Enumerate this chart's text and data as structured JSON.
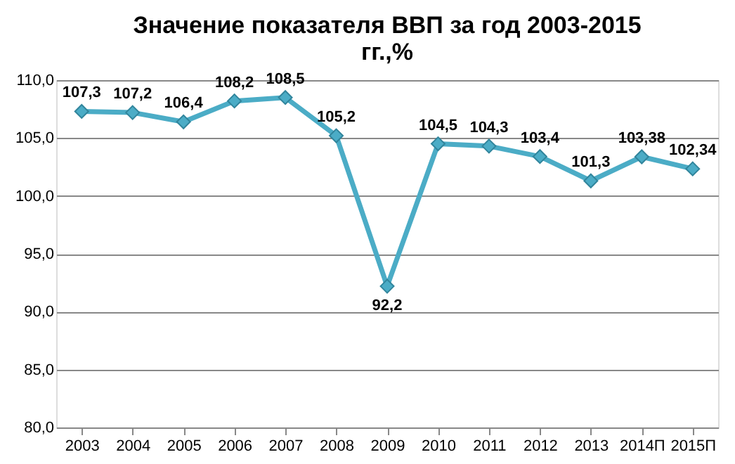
{
  "chart_data": {
    "type": "line",
    "title": "Значение показателя ВВП за год 2003-2015\nгг.,%",
    "categories": [
      "2003",
      "2004",
      "2005",
      "2006",
      "2007",
      "2008",
      "2009",
      "2010",
      "2011",
      "2012",
      "2013",
      "2014П",
      "2015П"
    ],
    "series": [
      {
        "color": "#4bacc6",
        "values": [
          107.3,
          107.2,
          106.4,
          108.2,
          108.5,
          105.2,
          92.2,
          104.5,
          104.3,
          103.4,
          101.3,
          103.38,
          102.34
        ],
        "value_labels": [
          "107,3",
          "107,2",
          "106,4",
          "108,2",
          "108,5",
          "105,2",
          "92,2",
          "104,5",
          "104,3",
          "103,4",
          "101,3",
          "103,38",
          "102,34"
        ]
      }
    ],
    "ylim": [
      80,
      110
    ],
    "yticks": [
      {
        "value": 80,
        "label": "80,0"
      },
      {
        "value": 85,
        "label": "85,0"
      },
      {
        "value": 90,
        "label": "90,0"
      },
      {
        "value": 95,
        "label": "95,0"
      },
      {
        "value": 100,
        "label": "100,0"
      },
      {
        "value": 105,
        "label": "105,0"
      },
      {
        "value": 110,
        "label": "110,0"
      }
    ],
    "grid": "y",
    "marker": "diamond",
    "line_style": "solid"
  }
}
